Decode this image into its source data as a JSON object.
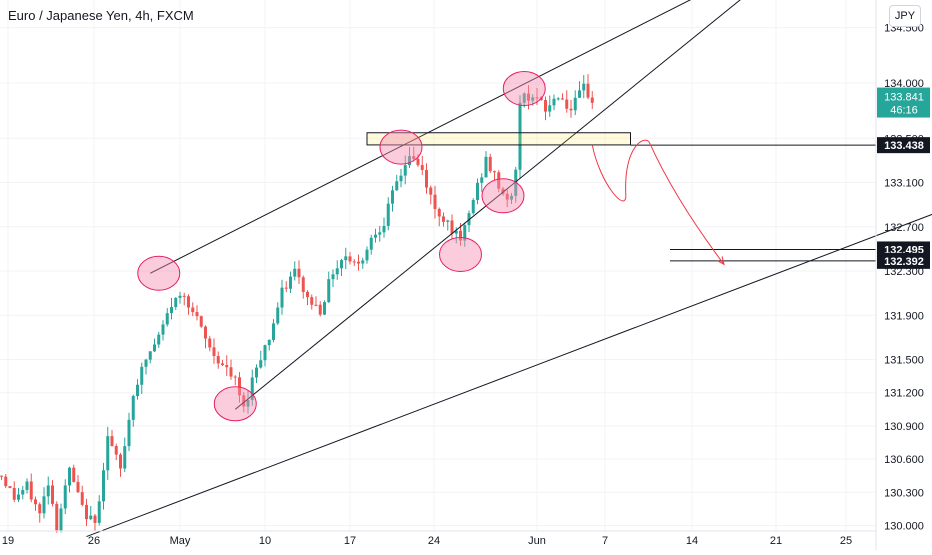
{
  "header": {
    "title": "Euro / Japanese Yen, 4h, FXCM",
    "currency": "JPY"
  },
  "chart_data": {
    "type": "candlestick",
    "title": "Euro / Japanese Yen, 4h, FXCM",
    "ylim": [
      129.95,
      134.75
    ],
    "x_ticks": [
      "19",
      "26",
      "May",
      "10",
      "17",
      "24",
      "Jun",
      "7",
      "14",
      "21",
      "25"
    ],
    "y_ticks": [
      "134.500",
      "134.000",
      "133.500",
      "133.100",
      "132.700",
      "132.300",
      "131.900",
      "131.500",
      "131.200",
      "130.900",
      "130.600",
      "130.300",
      "130.000"
    ],
    "current_price": {
      "value": 133.841,
      "label": "133.841",
      "countdown": "46:16"
    },
    "price_labels": [
      {
        "value": 133.438,
        "label": "133.438"
      },
      {
        "value": 132.495,
        "label": "132.495"
      },
      {
        "value": 132.392,
        "label": "132.392"
      }
    ],
    "anchors": [
      {
        "i": 0,
        "p": 130.45
      },
      {
        "i": 3,
        "p": 130.25
      },
      {
        "i": 6,
        "p": 130.35
      },
      {
        "i": 9,
        "p": 130.1
      },
      {
        "i": 11,
        "p": 130.4
      },
      {
        "i": 13,
        "p": 130.0
      },
      {
        "i": 16,
        "p": 130.5
      },
      {
        "i": 19,
        "p": 130.15
      },
      {
        "i": 22,
        "p": 130.0
      },
      {
        "i": 25,
        "p": 130.8
      },
      {
        "i": 28,
        "p": 130.5
      },
      {
        "i": 31,
        "p": 131.2
      },
      {
        "i": 34,
        "p": 131.5
      },
      {
        "i": 37,
        "p": 131.7
      },
      {
        "i": 40,
        "p": 132.0
      },
      {
        "i": 43,
        "p": 132.1
      },
      {
        "i": 46,
        "p": 131.85
      },
      {
        "i": 49,
        "p": 131.6
      },
      {
        "i": 52,
        "p": 131.45
      },
      {
        "i": 55,
        "p": 131.3
      },
      {
        "i": 57,
        "p": 131.05
      },
      {
        "i": 60,
        "p": 131.45
      },
      {
        "i": 63,
        "p": 131.7
      },
      {
        "i": 66,
        "p": 132.1
      },
      {
        "i": 69,
        "p": 132.3
      },
      {
        "i": 72,
        "p": 132.05
      },
      {
        "i": 75,
        "p": 131.95
      },
      {
        "i": 78,
        "p": 132.3
      },
      {
        "i": 81,
        "p": 132.45
      },
      {
        "i": 84,
        "p": 132.35
      },
      {
        "i": 87,
        "p": 132.6
      },
      {
        "i": 90,
        "p": 132.75
      },
      {
        "i": 93,
        "p": 133.1
      },
      {
        "i": 96,
        "p": 133.35
      },
      {
        "i": 99,
        "p": 133.2
      },
      {
        "i": 102,
        "p": 132.85
      },
      {
        "i": 105,
        "p": 132.75
      },
      {
        "i": 108,
        "p": 132.55
      },
      {
        "i": 111,
        "p": 132.95
      },
      {
        "i": 114,
        "p": 133.3
      },
      {
        "i": 116,
        "p": 133.15
      },
      {
        "i": 118,
        "p": 133.0
      },
      {
        "i": 120,
        "p": 132.95
      },
      {
        "i": 121,
        "p": 133.2
      },
      {
        "i": 122,
        "p": 133.85
      },
      {
        "i": 125,
        "p": 133.9
      },
      {
        "i": 128,
        "p": 133.75
      },
      {
        "i": 131,
        "p": 133.9
      },
      {
        "i": 134,
        "p": 133.75
      },
      {
        "i": 137,
        "p": 133.95
      },
      {
        "i": 139,
        "p": 133.841
      }
    ],
    "annotations": {
      "lines": [
        {
          "t1": 35,
          "p1": 132.28,
          "t2": 180,
          "p2": 135.1
        },
        {
          "t1": 55,
          "p1": 131.05,
          "t2": 185,
          "p2": 135.1
        },
        {
          "t1": 20,
          "p1": 129.9,
          "t2": 225,
          "p2": 132.9
        }
      ],
      "ellipses": [
        {
          "t": 37,
          "p": 132.28
        },
        {
          "t": 55,
          "p": 131.1
        },
        {
          "t": 94,
          "p": 133.42
        },
        {
          "t": 108,
          "p": 132.45
        },
        {
          "t": 118,
          "p": 132.98
        },
        {
          "t": 123,
          "p": 133.95
        }
      ],
      "zone": {
        "t1": 86,
        "t2": 148,
        "p_top": 133.55,
        "p_bottom": 133.44
      },
      "arrow": [
        {
          "t": 139,
          "p": 133.44
        },
        {
          "t": 145,
          "p": 133.0
        },
        {
          "t": 152,
          "p": 133.46
        },
        {
          "t": 170,
          "p": 132.36
        }
      ]
    }
  }
}
